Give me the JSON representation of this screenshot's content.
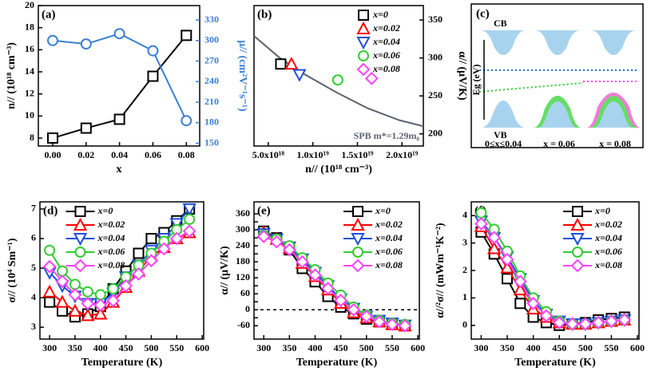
{
  "chart_data": [
    {
      "type": "dual",
      "label": "(a)",
      "xlabel": "x",
      "ylabel": "n// (10¹⁸ cm⁻³)",
      "y2label": "μ// (cm²V⁻¹s⁻¹)",
      "x": [
        0,
        0.02,
        0.04,
        0.06,
        0.08
      ],
      "xlim": [
        -0.0086,
        0.088
      ],
      "xticks": [
        {
          "value": 0,
          "label": "0.00"
        },
        0.02,
        0.04,
        0.06,
        {
          "value": 0.08,
          "label": "0.08"
        }
      ],
      "ylim": [
        7.28,
        20
      ],
      "yticks": [
        8,
        10,
        12,
        14,
        16,
        18,
        20
      ],
      "y2lim": [
        146,
        351
      ],
      "y2ticks": [
        150,
        180,
        210,
        240,
        270,
        300,
        330
      ],
      "series": [
        {
          "color": "#000000",
          "marker": "square",
          "values": [
            8.0,
            8.9,
            9.7,
            13.6,
            17.3
          ]
        },
        {
          "color": "#3a7fd5",
          "marker": "circle",
          "axis": "y2",
          "values": [
            300,
            295,
            310,
            285,
            183
          ]
        }
      ]
    },
    {
      "type": "scatter",
      "label": "(b)",
      "xlabel": "n// (10¹⁸ cm⁻³)",
      "ylabel": "α// (μV/K)",
      "y_axis_side": "right",
      "xlim": [
        3.4e+18,
        2.24e+19
      ],
      "xticks": [
        {
          "value": 5e+18,
          "label": "5.0x10¹⁸"
        },
        {
          "value": 1e+19,
          "label": "1.0x10¹⁹"
        },
        {
          "value": 1.5e+19,
          "label": "1.5x10¹⁹"
        },
        {
          "value": 2e+19,
          "label": "2.0x10¹⁹"
        }
      ],
      "ylim": [
        184,
        369
      ],
      "yticks": [
        200,
        250,
        300,
        350
      ],
      "legend": "upper right",
      "series": [
        {
          "name": "x=0",
          "color": "#000000",
          "marker": "square",
          "x": [
            6.4e+18
          ],
          "values": [
            292
          ]
        },
        {
          "name": "x=0.02",
          "color": "#ff0000",
          "marker": "triangle-up",
          "x": [
            7.6e+18
          ],
          "values": [
            292
          ]
        },
        {
          "name": "x=0.04",
          "color": "#1f4fd8",
          "marker": "triangle-down",
          "x": [
            8.5e+18
          ],
          "values": [
            278
          ]
        },
        {
          "name": "x=0.06",
          "color": "#33cc33",
          "marker": "circle",
          "x": [
            1.28e+19
          ],
          "values": [
            271
          ]
        },
        {
          "name": "x=0.08",
          "color": "#ff44ff",
          "marker": "diamond",
          "x": [
            1.66e+19
          ],
          "values": [
            273
          ]
        }
      ],
      "curve": {
        "color": "#5b6470",
        "x": [
          3.4e+18,
          6.3e+18,
          9e+18,
          1.26e+19,
          1.61e+19,
          1.97e+19,
          2.24e+19
        ],
        "values": [
          329,
          300,
          279,
          255,
          234,
          218,
          210
        ]
      },
      "annotation": "SPB m*=1.29m₀"
    },
    {
      "type": "line",
      "label": "(d)",
      "xlabel": "Temperature (K)",
      "ylabel": "σ// (10⁴ Sm⁻¹)",
      "x": [
        300,
        325,
        350,
        375,
        400,
        425,
        450,
        475,
        500,
        525,
        550,
        575
      ],
      "xlim": [
        281,
        603
      ],
      "xticks": [
        300,
        350,
        400,
        450,
        500,
        550,
        600
      ],
      "ylim": [
        2.6,
        7.24
      ],
      "yticks": [
        3,
        4,
        5,
        6,
        7
      ],
      "legend": "upper center",
      "series": [
        {
          "name": "x=0",
          "color": "#000000",
          "marker": "square",
          "values": [
            3.85,
            3.55,
            3.35,
            3.45,
            3.7,
            4.3,
            4.9,
            5.5,
            6.0,
            6.2,
            6.6,
            7.0
          ]
        },
        {
          "name": "x=0.02",
          "color": "#ff0000",
          "marker": "triangle-up",
          "values": [
            4.2,
            3.85,
            3.55,
            3.4,
            3.45,
            3.85,
            4.35,
            4.9,
            5.4,
            5.7,
            6.0,
            6.2
          ]
        },
        {
          "name": "x=0.04",
          "color": "#1f4fd8",
          "marker": "triangle-down",
          "values": [
            4.85,
            4.4,
            4.05,
            3.8,
            3.8,
            4.15,
            4.7,
            5.1,
            5.6,
            6.0,
            6.5,
            7.0
          ]
        },
        {
          "name": "x=0.06",
          "color": "#33cc33",
          "marker": "circle",
          "values": [
            5.6,
            4.9,
            4.45,
            4.2,
            4.1,
            4.3,
            4.7,
            5.1,
            5.5,
            5.9,
            6.3,
            6.65
          ]
        },
        {
          "name": "x=0.08",
          "color": "#ff44ff",
          "marker": "diamond",
          "values": [
            5.05,
            4.55,
            4.1,
            3.8,
            3.75,
            3.9,
            4.4,
            4.8,
            5.25,
            5.65,
            6.0,
            6.25
          ]
        }
      ]
    },
    {
      "type": "line",
      "label": "(e)",
      "xlabel": "Temperature (K)",
      "ylabel": "α// (μV/K)",
      "x": [
        300,
        325,
        350,
        375,
        400,
        425,
        450,
        475,
        500,
        525,
        550,
        575
      ],
      "xlim": [
        281,
        603
      ],
      "xticks": [
        300,
        350,
        400,
        450,
        500,
        550,
        600
      ],
      "ylim": [
        -110,
        405
      ],
      "yticks": [
        -60,
        -30,
        0,
        30,
        60,
        90,
        120,
        150,
        180,
        210,
        240,
        270,
        300,
        330,
        360
      ],
      "ytick_labels_every": 2,
      "hline": 0,
      "legend": "upper right",
      "series": [
        {
          "name": "x=0",
          "color": "#000000",
          "marker": "square",
          "values": [
            295,
            270,
            225,
            155,
            105,
            50,
            10,
            -15,
            -35,
            -45,
            -55,
            -60
          ]
        },
        {
          "name": "x=0.02",
          "color": "#ff0000",
          "marker": "triangle-up",
          "values": [
            290,
            265,
            230,
            175,
            125,
            75,
            25,
            -10,
            -30,
            -45,
            -55,
            -60
          ]
        },
        {
          "name": "x=0.04",
          "color": "#1f4fd8",
          "marker": "triangle-down",
          "values": [
            285,
            265,
            235,
            190,
            140,
            90,
            40,
            5,
            -25,
            -40,
            -50,
            -58
          ]
        },
        {
          "name": "x=0.06",
          "color": "#33cc33",
          "marker": "circle",
          "values": [
            280,
            265,
            240,
            195,
            150,
            100,
            55,
            10,
            -20,
            -40,
            -50,
            -55
          ]
        },
        {
          "name": "x=0.08",
          "color": "#ff44ff",
          "marker": "diamond",
          "values": [
            275,
            255,
            225,
            180,
            130,
            80,
            35,
            0,
            -25,
            -45,
            -55,
            -60
          ]
        }
      ]
    },
    {
      "type": "line",
      "label": "(f)",
      "xlabel": "Temperature (K)",
      "ylabel": "α//²σ// (mWm⁻¹K⁻²)",
      "x": [
        300,
        325,
        350,
        375,
        400,
        425,
        450,
        475,
        500,
        525,
        550,
        575
      ],
      "xlim": [
        281,
        603
      ],
      "xticks": [
        300,
        350,
        400,
        450,
        500,
        550,
        600
      ],
      "ylim": [
        -0.5,
        4.5
      ],
      "yticks": [
        0,
        1,
        2,
        3,
        4
      ],
      "legend": "upper right",
      "series": [
        {
          "name": "x=0",
          "color": "#000000",
          "marker": "square",
          "values": [
            3.4,
            2.6,
            1.7,
            0.8,
            0.3,
            0.1,
            0.0,
            0.05,
            0.1,
            0.2,
            0.25,
            0.3
          ]
        },
        {
          "name": "x=0.02",
          "color": "#ff0000",
          "marker": "triangle-up",
          "values": [
            3.6,
            2.8,
            2.1,
            1.3,
            0.6,
            0.3,
            0.1,
            0.05,
            0.05,
            0.1,
            0.15,
            0.2
          ]
        },
        {
          "name": "x=0.04",
          "color": "#1f4fd8",
          "marker": "triangle-down",
          "values": [
            3.8,
            3.2,
            2.5,
            1.7,
            0.9,
            0.4,
            0.15,
            0.05,
            0.05,
            0.1,
            0.15,
            0.2
          ]
        },
        {
          "name": "x=0.06",
          "color": "#33cc33",
          "marker": "circle",
          "values": [
            4.1,
            3.5,
            2.7,
            1.8,
            1.0,
            0.5,
            0.15,
            0.05,
            0.05,
            0.1,
            0.15,
            0.2
          ]
        },
        {
          "name": "x=0.08",
          "color": "#ff44ff",
          "marker": "diamond",
          "values": [
            3.7,
            3.2,
            2.4,
            1.6,
            0.8,
            0.35,
            0.1,
            0.05,
            0.05,
            0.1,
            0.15,
            0.2
          ]
        }
      ]
    }
  ],
  "schematic": {
    "label": "(c)",
    "cb": "CB",
    "vb": "VB",
    "eg": "Eg (eV)",
    "cases": [
      "0≤x≤0.04",
      "x = 0.06",
      "x = 0.08"
    ]
  }
}
